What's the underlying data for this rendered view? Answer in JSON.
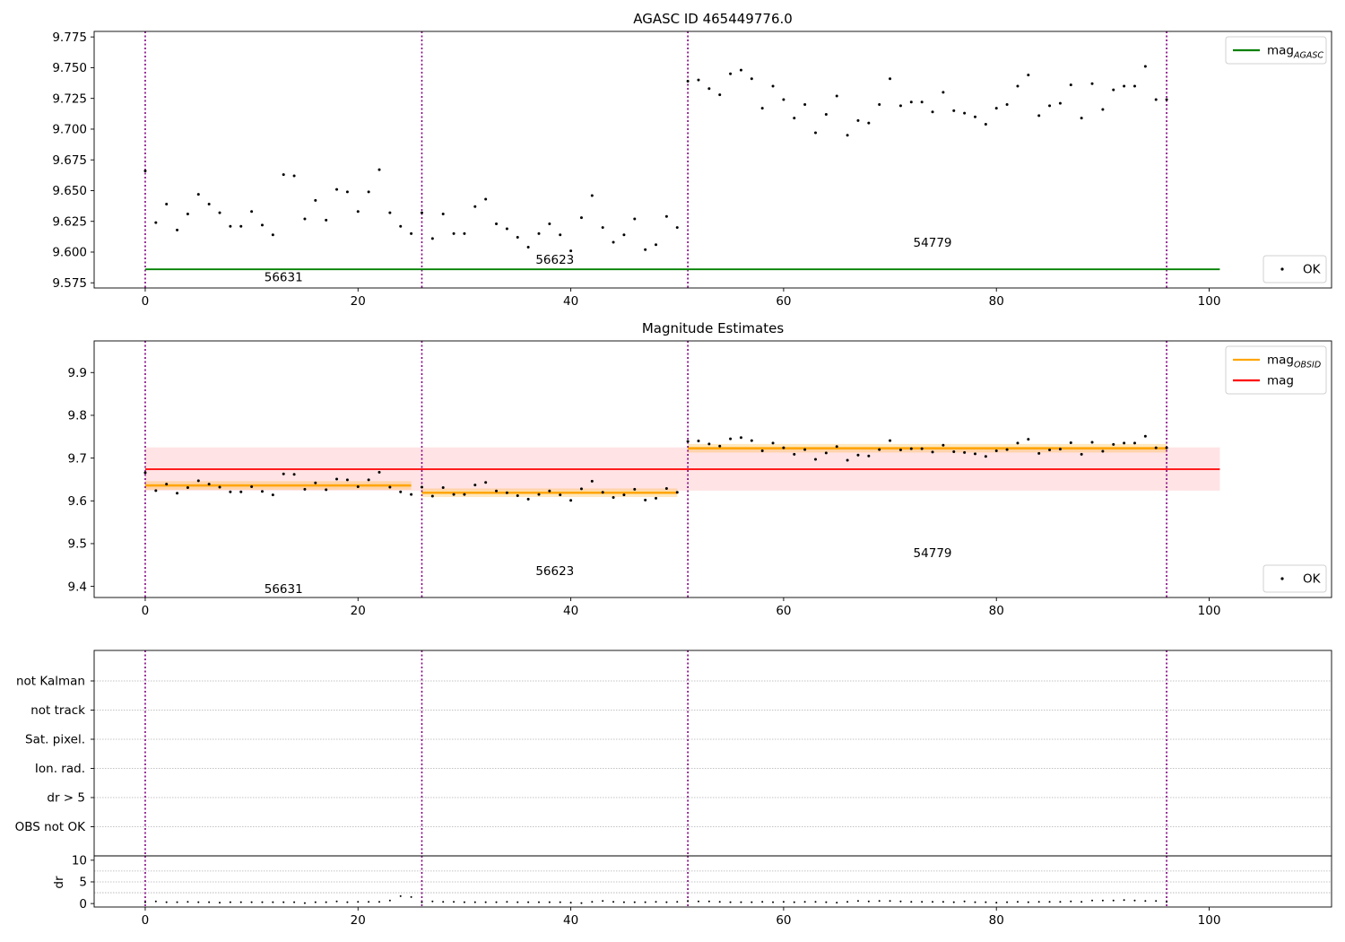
{
  "figure": {
    "title": "AGASC ID 465449776.0"
  },
  "obsids": {
    "boundaries_index": [
      0,
      26,
      51,
      96
    ],
    "labels": [
      {
        "text": "56631",
        "x": 13.0
      },
      {
        "text": "56623",
        "x": 38.5
      },
      {
        "text": "54779",
        "x": 74.0
      }
    ]
  },
  "chart_data": [
    {
      "id": "top",
      "type": "scatter",
      "title": "AGASC ID 465449776.0",
      "xlabel": "",
      "ylabel": "",
      "xlim": [
        -4.8,
        111.5
      ],
      "ylim": [
        9.5708,
        9.7795
      ],
      "yticks": [
        9.575,
        9.6,
        9.625,
        9.65,
        9.675,
        9.7,
        9.725,
        9.75,
        9.775
      ],
      "ytick_labels": [
        "9.575",
        "9.600",
        "9.625",
        "9.650",
        "9.675",
        "9.700",
        "9.725",
        "9.750",
        "9.775"
      ],
      "xticks": [
        0,
        20,
        40,
        60,
        80,
        100
      ],
      "xtick_labels": [
        "0",
        "20",
        "40",
        "60",
        "80",
        "100"
      ],
      "obsid_label_y": 9.58,
      "label_y_values": [
        9.58,
        9.594,
        9.608
      ],
      "lines": [
        {
          "name": "mag_AGASC",
          "y": 9.586,
          "x_range": [
            0,
            101
          ],
          "color": "#008000"
        }
      ],
      "legends": [
        {
          "position": "top-right",
          "entries": [
            {
              "kind": "line",
              "label": "mag",
              "sub": "AGASC",
              "color": "#008000"
            }
          ]
        },
        {
          "position": "bottom-right",
          "entries": [
            {
              "kind": "dot",
              "label": "OK",
              "color": "#000000"
            }
          ]
        }
      ]
    },
    {
      "id": "middle",
      "type": "scatter",
      "title": "Magnitude Estimates",
      "xlabel": "",
      "ylabel": "",
      "xlim": [
        -4.8,
        111.5
      ],
      "ylim": [
        9.374,
        9.974
      ],
      "yticks": [
        9.4,
        9.5,
        9.6,
        9.7,
        9.8,
        9.9
      ],
      "ytick_labels": [
        "9.4",
        "9.5",
        "9.6",
        "9.7",
        "9.8",
        "9.9"
      ],
      "xticks": [
        0,
        20,
        40,
        60,
        80,
        100
      ],
      "xtick_labels": [
        "0",
        "20",
        "40",
        "60",
        "80",
        "100"
      ],
      "label_y_values": [
        9.395,
        9.437,
        9.479
      ],
      "mag": {
        "value": 9.674,
        "band": [
          9.624,
          9.725
        ],
        "x_range": [
          0,
          101
        ],
        "color": "#ff0000",
        "band_color": "#ffc0c5"
      },
      "segments": [
        {
          "x": [
            0,
            25
          ],
          "value": 9.636,
          "band": [
            9.626,
            9.646
          ]
        },
        {
          "x": [
            26,
            50
          ],
          "value": 9.619,
          "band": [
            9.609,
            9.629
          ]
        },
        {
          "x": [
            51,
            96
          ],
          "value": 9.723,
          "band": [
            9.713,
            9.733
          ]
        }
      ],
      "segment_color": "#ffa500",
      "legends": [
        {
          "position": "top-right",
          "entries": [
            {
              "kind": "line",
              "label": "mag",
              "sub": "OBSID",
              "color": "#ffa500"
            },
            {
              "kind": "line",
              "label": "mag",
              "sub": "",
              "color": "#ff0000"
            }
          ]
        },
        {
          "position": "bottom-right",
          "entries": [
            {
              "kind": "dot",
              "label": "OK",
              "color": "#000000"
            }
          ]
        }
      ]
    },
    {
      "id": "flags",
      "type": "scatter",
      "title": "",
      "categories": [
        "OBS not OK",
        "dr > 5",
        "Ion. rad.",
        "Sat. pixel.",
        "not track",
        "not Kalman"
      ],
      "xlim": [
        -4.8,
        111.5
      ],
      "values": []
    },
    {
      "id": "dr",
      "type": "scatter",
      "title": "",
      "xlabel": "",
      "ylabel": "dr",
      "xlim": [
        -4.8,
        111.5
      ],
      "ylim": [
        -0.8,
        11.0
      ],
      "yticks": [
        0,
        5,
        10
      ],
      "ytick_labels": [
        "0",
        "5",
        "10"
      ],
      "xticks": [
        0,
        20,
        40,
        60,
        80,
        100
      ],
      "xtick_labels": [
        "0",
        "20",
        "40",
        "60",
        "80",
        "100"
      ]
    }
  ],
  "series": {
    "index": [
      0,
      1,
      2,
      3,
      4,
      5,
      6,
      7,
      8,
      9,
      10,
      11,
      12,
      13,
      14,
      15,
      16,
      17,
      18,
      19,
      20,
      21,
      22,
      23,
      24,
      25,
      26,
      27,
      28,
      29,
      30,
      31,
      32,
      33,
      34,
      35,
      36,
      37,
      38,
      39,
      40,
      41,
      42,
      43,
      44,
      45,
      46,
      47,
      48,
      49,
      50,
      51,
      52,
      53,
      54,
      55,
      56,
      57,
      58,
      59,
      60,
      61,
      62,
      63,
      64,
      65,
      66,
      67,
      68,
      69,
      70,
      71,
      72,
      73,
      74,
      75,
      76,
      77,
      78,
      79,
      80,
      81,
      82,
      83,
      84,
      85,
      86,
      87,
      88,
      89,
      90,
      91,
      92,
      93,
      94,
      95,
      96
    ],
    "mag": [
      9.666,
      9.624,
      9.639,
      9.618,
      9.631,
      9.647,
      9.639,
      9.632,
      9.621,
      9.621,
      9.633,
      9.622,
      9.614,
      9.663,
      9.662,
      9.627,
      9.642,
      9.626,
      9.651,
      9.649,
      9.633,
      9.649,
      9.667,
      9.632,
      9.621,
      9.615,
      9.632,
      9.611,
      9.631,
      9.615,
      9.615,
      9.637,
      9.643,
      9.623,
      9.619,
      9.612,
      9.604,
      9.615,
      9.623,
      9.614,
      9.601,
      9.628,
      9.646,
      9.62,
      9.608,
      9.614,
      9.627,
      9.602,
      9.606,
      9.629,
      9.62,
      9.739,
      9.74,
      9.733,
      9.728,
      9.745,
      9.748,
      9.741,
      9.717,
      9.735,
      9.724,
      9.709,
      9.72,
      9.697,
      9.712,
      9.727,
      9.695,
      9.707,
      9.705,
      9.72,
      9.741,
      9.719,
      9.722,
      9.722,
      9.714,
      9.73,
      9.715,
      9.713,
      9.71,
      9.704,
      9.717,
      9.72,
      9.735,
      9.744,
      9.711,
      9.719,
      9.721,
      9.736,
      9.709,
      9.737,
      9.716,
      9.732,
      9.735,
      9.735,
      9.751,
      9.724,
      9.724
    ],
    "dr": [
      0.3,
      0.5,
      0.3,
      0.3,
      0.4,
      0.3,
      0.3,
      0.2,
      0.3,
      0.3,
      0.3,
      0.3,
      0.3,
      0.3,
      0.3,
      0.1,
      0.3,
      0.3,
      0.5,
      0.3,
      0.4,
      0.4,
      0.4,
      0.7,
      1.7,
      1.5,
      0.3,
      0.5,
      0.4,
      0.4,
      0.3,
      0.3,
      0.3,
      0.3,
      0.4,
      0.3,
      0.3,
      0.3,
      0.3,
      0.3,
      0.2,
      0.1,
      0.4,
      0.6,
      0.4,
      0.3,
      0.3,
      0.3,
      0.4,
      0.3,
      0.4,
      0.6,
      0.5,
      0.5,
      0.4,
      0.3,
      0.3,
      0.3,
      0.4,
      0.3,
      0.4,
      0.3,
      0.4,
      0.4,
      0.3,
      0.2,
      0.4,
      0.6,
      0.5,
      0.6,
      0.6,
      0.5,
      0.4,
      0.4,
      0.4,
      0.4,
      0.3,
      0.5,
      0.3,
      0.3,
      0.2,
      0.3,
      0.4,
      0.3,
      0.4,
      0.4,
      0.4,
      0.5,
      0.4,
      0.7,
      0.7,
      0.7,
      0.8,
      0.7,
      0.6,
      0.6,
      0.4
    ]
  },
  "colors": {
    "axis": "#000000",
    "boundary_line": "#800080",
    "grid": "#b0b0b0",
    "point": "#000000"
  }
}
